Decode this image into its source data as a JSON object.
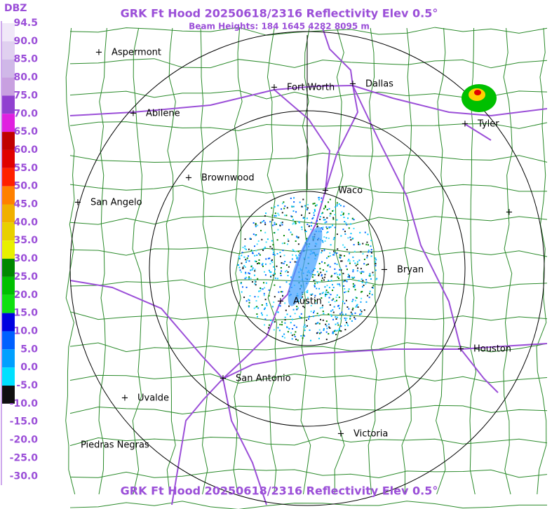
{
  "header": {
    "title": "GRK Ft Hood 20250618/2316 Reflectivity Elev 0.5°",
    "subtitle": "Beam Heights: 184 1645 4282 8095 m"
  },
  "footer": {
    "title": "GRK Ft Hood 20250618/2316 Reflectivity Elev 0.5°"
  },
  "legend": {
    "unit": "DBZ",
    "labels": [
      "94.5",
      "90.0",
      "85.0",
      "80.0",
      "75.0",
      "70.0",
      "65.0",
      "60.0",
      "55.0",
      "50.0",
      "45.0",
      "40.0",
      "35.0",
      "30.0",
      "25.0",
      "20.0",
      "15.0",
      "10.0",
      "5.0",
      "0.0",
      "-5.0",
      "-10.0",
      "-15.0",
      "-20.0",
      "-25.0",
      "-30.0"
    ]
  },
  "cities": [
    "Aspermont",
    "Fort Worth",
    "Dallas",
    "Abilene",
    "Tyler",
    "Brownwood",
    "Waco",
    "San Angelo",
    "Bryan",
    "Austin",
    "Houston",
    "San Antonio",
    "Uvalde",
    "Victoria",
    "Piedras Negras"
  ]
}
